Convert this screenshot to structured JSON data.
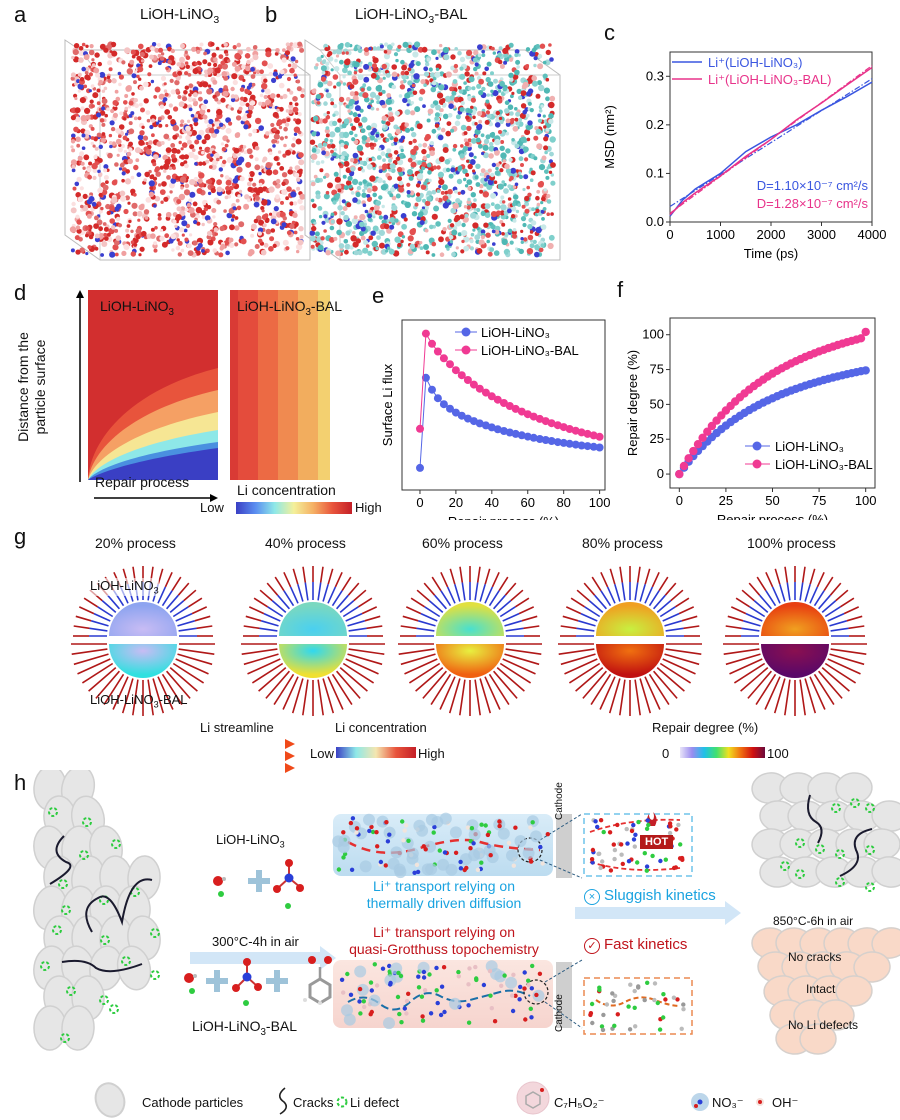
{
  "panels": {
    "a": {
      "label": "a",
      "title_main": "LiOH-LiNO",
      "title_sub": "3",
      "title_tail": ""
    },
    "b": {
      "label": "b",
      "title_main": "LiOH-LiNO",
      "title_sub": "3",
      "title_tail": "-BAL"
    },
    "c": {
      "label": "c"
    },
    "d": {
      "label": "d",
      "left_title_main": "LiOH-LiNO",
      "left_title_sub": "3",
      "right_title_main": "LiOH-LiNO",
      "right_title_sub": "3",
      "right_title_tail": "-BAL",
      "ylabel_line1": "Distance from the",
      "ylabel_line2": "particle surface",
      "xlabel": "Repair process",
      "colorbar_title": "Li concentration",
      "colorbar_low": "Low",
      "colorbar_high": "High"
    },
    "e": {
      "label": "e"
    },
    "f": {
      "label": "f"
    },
    "g": {
      "label": "g",
      "stages": [
        "20% process",
        "40% process",
        "60% process",
        "80% process",
        "100% process"
      ],
      "top_label_main": "LiOH-LiNO",
      "top_label_sub": "3",
      "bottom_label_main": "LiOH-LiNO",
      "bottom_label_sub": "3",
      "bottom_label_tail": "-BAL",
      "legend_streamline": "Li streamline",
      "legend_concentration": "Li concentration",
      "legend_conc_low": "Low",
      "legend_conc_high": "High",
      "legend_repair": "Repair degree (%)",
      "legend_repair_min": "0",
      "legend_repair_max": "100"
    },
    "h": {
      "label": "h",
      "reagent_top_main": "LiOH-LiNO",
      "reagent_top_sub": "3",
      "reagent_bottom_main": "LiOH-LiNO",
      "reagent_bottom_sub": "3",
      "reagent_bottom_tail": "-BAL",
      "step1_condition": "300°C-4h in air",
      "top_transport_line1": "Li⁺ transport relying on",
      "top_transport_line2": "thermally driven diffusion",
      "bottom_transport_line1": "Li⁺ transport relying on",
      "bottom_transport_line2": "quasi-Grotthuss topochemistry",
      "cathode_label": "Cathode",
      "hot_label": "HOT",
      "sluggish": "Sluggish kinetics",
      "fast": "Fast kinetics",
      "step2_condition": "850°C-6h in air",
      "result_lines": [
        "No cracks",
        "Intact",
        "No Li defects"
      ],
      "colors": {
        "top_text": "#1aa3e0",
        "bottom_text": "#c0141c",
        "arrow": "#cfe3f5",
        "particle": "#e6e6e6",
        "particle_good": "#f9d9c8",
        "defect": "#2ecc40"
      }
    },
    "legend": {
      "cathode_particles": "Cathode particles",
      "cracks": "Cracks",
      "li_defect": "Li defect",
      "c7h5o2_main": "C",
      "c7h5o2_formula": [
        "7",
        "H",
        "5",
        "O",
        "2"
      ],
      "benzoate_label": "C₇H₅O₂⁻",
      "nitrate_label": "NO₃⁻",
      "hydroxide_label": "OH⁻"
    }
  },
  "chart_data": [
    {
      "id": "c",
      "type": "line",
      "title": "",
      "xlabel": "Time (ps)",
      "ylabel": "MSD (nm²)",
      "xlim": [
        0,
        4000
      ],
      "ylim": [
        0,
        0.35
      ],
      "xticks": [
        0,
        1000,
        2000,
        3000,
        4000
      ],
      "yticks": [
        0.0,
        0.1,
        0.2,
        0.3
      ],
      "ytick_labels": [
        "0.0",
        "0.1",
        "0.2",
        "0.3"
      ],
      "legend": "top-left",
      "series": [
        {
          "name": "Li⁺(LiOH-LiNO₃)",
          "color": "#3a56e0",
          "x": [
            0,
            250,
            500,
            1000,
            1500,
            2000,
            2500,
            3000,
            3500,
            4000
          ],
          "y": [
            0.012,
            0.045,
            0.068,
            0.1,
            0.145,
            0.175,
            0.2,
            0.23,
            0.258,
            0.288
          ],
          "fit": {
            "x": [
              0,
              4000
            ],
            "y": [
              0.032,
              0.295
            ],
            "style": "dash-dot"
          }
        },
        {
          "name": "Li⁺(LiOH-LiNO₃-BAL)",
          "color": "#e8338a",
          "x": [
            0,
            250,
            500,
            1000,
            1500,
            2000,
            2500,
            3000,
            3500,
            4000
          ],
          "y": [
            0.015,
            0.04,
            0.06,
            0.095,
            0.135,
            0.17,
            0.21,
            0.245,
            0.282,
            0.318
          ],
          "fit": {
            "x": [
              0,
              4000
            ],
            "y": [
              0.018,
              0.322
            ],
            "style": "dash-dot"
          }
        }
      ],
      "annotations": [
        {
          "text": "D=1.10×10⁻⁷ cm²/s",
          "color": "#3a56e0"
        },
        {
          "text": "D=1.28×10⁻⁷ cm²/s",
          "color": "#e8338a"
        }
      ]
    },
    {
      "id": "e",
      "type": "line",
      "xlabel": "Repair process (%)",
      "ylabel": "Surface Li flux",
      "xlim": [
        -10,
        103
      ],
      "ylim": [
        0,
        1
      ],
      "xticks": [
        0,
        20,
        40,
        60,
        80,
        100
      ],
      "yticks": [],
      "legend": "top-right",
      "series": [
        {
          "name": "LiOH-LiNO₃",
          "color": "#5566e6",
          "marker": "circle",
          "x": [
            0,
            3.3,
            6.7,
            10,
            13.3,
            16.7,
            20,
            23.3,
            26.7,
            30,
            33.3,
            36.7,
            40,
            43.3,
            46.7,
            50,
            53.3,
            56.7,
            60,
            63.3,
            66.7,
            70,
            73.3,
            76.7,
            80,
            83.3,
            86.7,
            90,
            93.3,
            96.7,
            100
          ],
          "y": [
            0.13,
            0.66,
            0.59,
            0.54,
            0.505,
            0.478,
            0.455,
            0.437,
            0.42,
            0.405,
            0.392,
            0.38,
            0.368,
            0.357,
            0.347,
            0.338,
            0.33,
            0.322,
            0.314,
            0.307,
            0.3,
            0.294,
            0.288,
            0.282,
            0.277,
            0.272,
            0.267,
            0.262,
            0.258,
            0.254,
            0.25
          ]
        },
        {
          "name": "LiOH-LiNO₃-BAL",
          "color": "#f03a93",
          "marker": "circle",
          "x": [
            0,
            3.3,
            6.7,
            10,
            13.3,
            16.7,
            20,
            23.3,
            26.7,
            30,
            33.3,
            36.7,
            40,
            43.3,
            46.7,
            50,
            53.3,
            56.7,
            60,
            63.3,
            66.7,
            70,
            73.3,
            76.7,
            80,
            83.3,
            86.7,
            90,
            93.3,
            96.7,
            100
          ],
          "y": [
            0.36,
            0.92,
            0.86,
            0.815,
            0.775,
            0.74,
            0.705,
            0.675,
            0.647,
            0.62,
            0.596,
            0.573,
            0.551,
            0.531,
            0.512,
            0.494,
            0.477,
            0.461,
            0.446,
            0.432,
            0.418,
            0.405,
            0.393,
            0.381,
            0.37,
            0.359,
            0.349,
            0.339,
            0.33,
            0.321,
            0.313
          ]
        }
      ]
    },
    {
      "id": "f",
      "type": "line",
      "xlabel": "Repair process (%)",
      "ylabel": "Repair degree (%)",
      "xlim": [
        -5,
        105
      ],
      "ylim": [
        -10,
        112
      ],
      "xticks": [
        0,
        25,
        50,
        75,
        100
      ],
      "yticks": [
        0,
        25,
        50,
        75,
        100
      ],
      "legend": "bottom-right",
      "series": [
        {
          "name": "LiOH-LiNO₃",
          "color": "#5566e6",
          "marker": "circle",
          "x": [
            0,
            2.5,
            5,
            7.5,
            10,
            12.5,
            15,
            17.5,
            20,
            22.5,
            25,
            27.5,
            30,
            32.5,
            35,
            37.5,
            40,
            42.5,
            45,
            47.5,
            50,
            52.5,
            55,
            57.5,
            60,
            62.5,
            65,
            67.5,
            70,
            72.5,
            75,
            77.5,
            80,
            82.5,
            85,
            87.5,
            90,
            92.5,
            95,
            97.5,
            100
          ],
          "y": [
            0,
            4.6,
            8.9,
            12.9,
            16.6,
            20.1,
            23.4,
            26.5,
            29.4,
            32.2,
            34.8,
            37.3,
            39.6,
            41.8,
            43.9,
            45.9,
            47.8,
            49.6,
            51.3,
            52.9,
            54.4,
            55.9,
            57.3,
            58.6,
            59.9,
            61.1,
            62.3,
            63.4,
            64.5,
            65.5,
            66.5,
            67.5,
            68.4,
            69.3,
            70.1,
            70.9,
            71.7,
            72.4,
            73.1,
            73.8,
            74.4
          ]
        },
        {
          "name": "LiOH-LiNO₃-BAL",
          "color": "#f03a93",
          "marker": "circle",
          "x": [
            0,
            2.5,
            5,
            7.5,
            10,
            12.5,
            15,
            17.5,
            20,
            22.5,
            25,
            27.5,
            30,
            32.5,
            35,
            37.5,
            40,
            42.5,
            45,
            47.5,
            50,
            52.5,
            55,
            57.5,
            60,
            62.5,
            65,
            67.5,
            70,
            72.5,
            75,
            77.5,
            80,
            82.5,
            85,
            87.5,
            90,
            92.5,
            95,
            97.5,
            100
          ],
          "y": [
            0,
            5.8,
            11.3,
            16.5,
            21.4,
            26.0,
            30.4,
            34.5,
            38.4,
            42.1,
            45.6,
            48.9,
            52.1,
            55.1,
            57.9,
            60.6,
            63.1,
            65.5,
            67.8,
            70.0,
            72.1,
            74.1,
            75.9,
            77.7,
            79.4,
            81.0,
            82.5,
            84.0,
            85.4,
            86.7,
            88.0,
            89.2,
            90.4,
            91.5,
            92.6,
            93.6,
            94.6,
            95.6,
            96.5,
            97.4,
            102.0
          ]
        }
      ]
    }
  ]
}
